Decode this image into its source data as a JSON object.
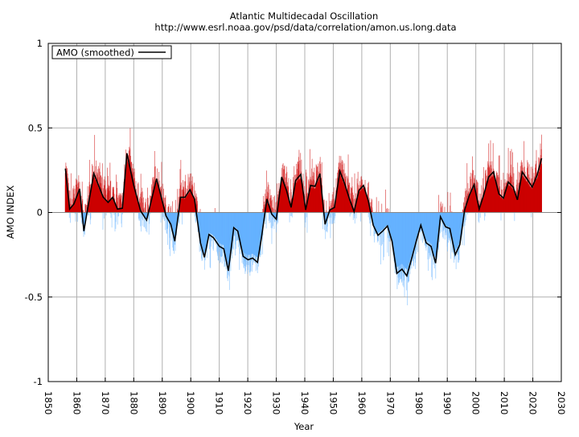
{
  "chart_data": {
    "type": "line",
    "title": "Atlantic Multidecadal Oscillation",
    "subtitle": "http://www.esrl.noaa.gov/psd/data/correlation/amon.us.long.data",
    "xlabel": "Year",
    "ylabel": "AMO INDEX",
    "xlim": [
      1850,
      2030
    ],
    "ylim": [
      -1,
      1
    ],
    "xticks": [
      "1850",
      "1860",
      "1870",
      "1880",
      "1890",
      "1900",
      "1910",
      "1920",
      "1930",
      "1940",
      "1950",
      "1960",
      "1970",
      "1980",
      "1990",
      "2000",
      "2010",
      "2020",
      "2030"
    ],
    "yticks": [
      "1",
      "0.5",
      "0",
      "-0.5",
      "-1"
    ],
    "grid": true,
    "legend_placement": "top-left",
    "colors": {
      "positive_fill": "#cc0000",
      "negative_fill": "#66b2ff",
      "line": "#000000",
      "grid": "#b0b0b0"
    },
    "series": [
      {
        "name": "AMO (smoothed)",
        "x": [
          1856,
          1857.5,
          1859,
          1861,
          1862.5,
          1864,
          1866,
          1869.3,
          1871,
          1872.6,
          1874.3,
          1876,
          1877.6,
          1880,
          1882.4,
          1884.5,
          1888,
          1891.3,
          1893,
          1894.4,
          1896.4,
          1898,
          1899.7,
          1901.3,
          1903.4,
          1904.8,
          1906.4,
          1908,
          1910,
          1911.6,
          1913.2,
          1915.1,
          1916.5,
          1918.4,
          1920.1,
          1921.7,
          1923.4,
          1924.8,
          1926.7,
          1928.4,
          1930,
          1931.9,
          1933.6,
          1935.2,
          1936.8,
          1938.6,
          1940.3,
          1942,
          1943.6,
          1945.3,
          1947.1,
          1948.8,
          1950.4,
          1952.3,
          1954,
          1955.7,
          1957.3,
          1959,
          1960.6,
          1962.3,
          1964,
          1965.7,
          1967.3,
          1969,
          1970.6,
          1972.3,
          1974.1,
          1975.8,
          1977.6,
          1979.1,
          1980.7,
          1982.6,
          1984.3,
          1985.9,
          1987.6,
          1989.4,
          1990.9,
          1992.8,
          1994.4,
          1996.1,
          1997.7,
          1999.4,
          2001.2,
          2002.9,
          2004.5,
          2006.2,
          2008.1,
          2009.7,
          2011.4,
          2013.1,
          2014.6,
          2016.3,
          2018.1,
          2019.8,
          2021.5,
          2023.1
        ],
        "values": [
          0.26,
          0.02,
          0.05,
          0.14,
          -0.11,
          0.04,
          0.23,
          0.09,
          0.06,
          0.09,
          0.02,
          0.025,
          0.35,
          0.16,
          0.01,
          -0.045,
          0.2,
          -0.02,
          -0.07,
          -0.17,
          0.09,
          0.09,
          0.135,
          0.08,
          -0.18,
          -0.265,
          -0.13,
          -0.15,
          -0.2,
          -0.215,
          -0.345,
          -0.09,
          -0.11,
          -0.26,
          -0.28,
          -0.27,
          -0.295,
          -0.15,
          0.08,
          -0.01,
          -0.04,
          0.21,
          0.13,
          0.03,
          0.19,
          0.225,
          0.015,
          0.16,
          0.155,
          0.23,
          -0.07,
          0.015,
          0.03,
          0.245,
          0.17,
          0.08,
          0.005,
          0.13,
          0.16,
          0.07,
          -0.075,
          -0.135,
          -0.11,
          -0.08,
          -0.17,
          -0.36,
          -0.335,
          -0.375,
          -0.265,
          -0.17,
          -0.075,
          -0.18,
          -0.2,
          -0.3,
          -0.025,
          -0.085,
          -0.095,
          -0.25,
          -0.19,
          0.015,
          0.1,
          0.165,
          0.02,
          0.11,
          0.21,
          0.24,
          0.11,
          0.085,
          0.18,
          0.15,
          0.075,
          0.24,
          0.195,
          0.15,
          0.22,
          0.32
        ]
      }
    ]
  }
}
